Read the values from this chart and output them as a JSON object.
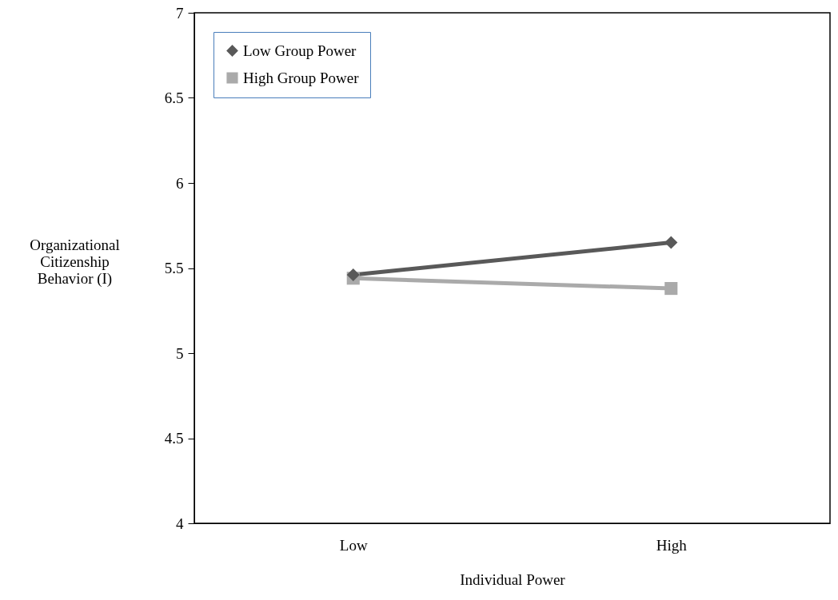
{
  "chart_data": {
    "type": "line",
    "xlabel": "Individual Power",
    "ylabel": "Organizational Citizenship Behavior (I)",
    "categories": [
      "Low",
      "High"
    ],
    "series": [
      {
        "name": "Low Group Power",
        "color": "#595959",
        "marker": "diamond",
        "values": [
          5.46,
          5.65
        ]
      },
      {
        "name": "High Group Power",
        "color": "#aaaaaa",
        "marker": "square",
        "values": [
          5.44,
          5.38
        ]
      }
    ],
    "ylim": [
      4,
      7
    ],
    "yticks": [
      4,
      4.5,
      5,
      5.5,
      6,
      6.5,
      7
    ],
    "grid": false,
    "legend": "top left",
    "line_style": "solid"
  }
}
